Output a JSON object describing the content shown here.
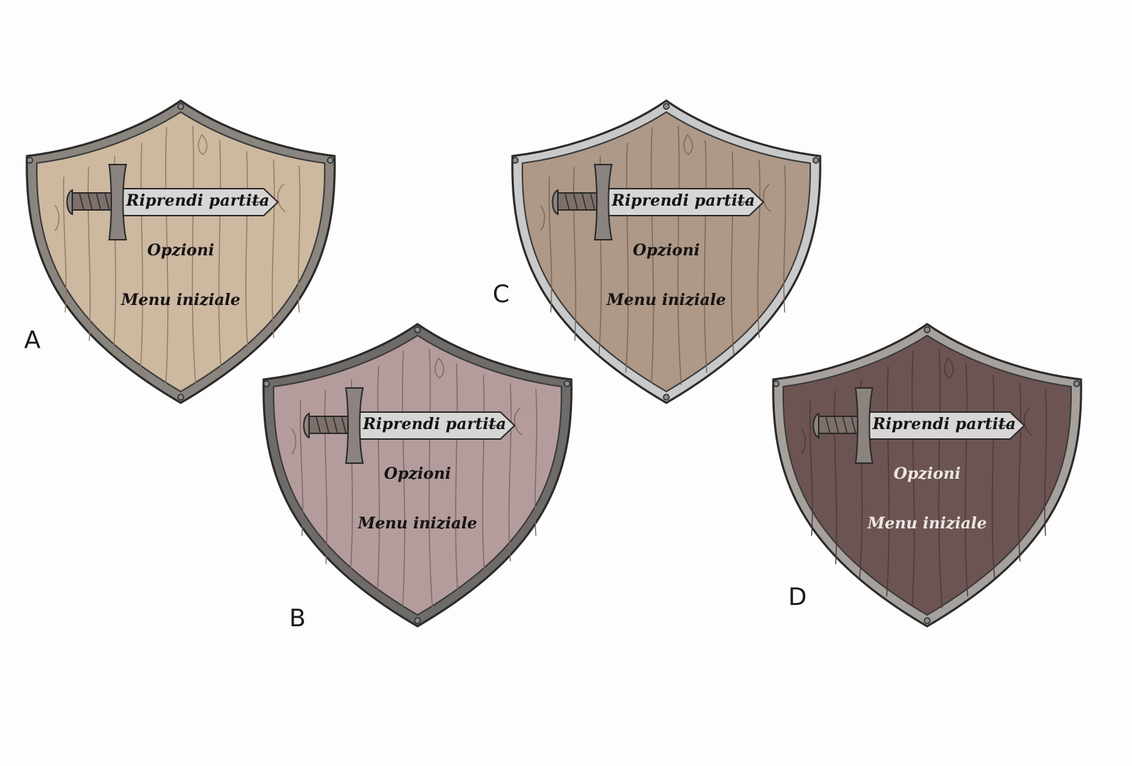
{
  "variants": [
    {
      "letter": "A",
      "resume_label": "Riprendi partita",
      "options_label": "Opzioni",
      "main_menu_label": "Menu iniziale",
      "wood_color": "#cdb8a0",
      "grain_color": "#8f7a66",
      "rim_color": "#8a857e",
      "text_color": "#141414"
    },
    {
      "letter": "B",
      "resume_label": "Riprendi partita",
      "options_label": "Opzioni",
      "main_menu_label": "Menu iniziale",
      "wood_color": "#b49c9c",
      "grain_color": "#7c6666",
      "rim_color": "#6e6b69",
      "text_color": "#141414"
    },
    {
      "letter": "C",
      "resume_label": "Riprendi partita",
      "options_label": "Opzioni",
      "main_menu_label": "Menu iniziale",
      "wood_color": "#ae9887",
      "grain_color": "#7a6656",
      "rim_color": "#c9c9c9",
      "text_color": "#141414"
    },
    {
      "letter": "D",
      "resume_label": "Riprendi partita",
      "options_label": "Opzioni",
      "main_menu_label": "Menu iniziale",
      "wood_color": "#6c5453",
      "grain_color": "#4a3837",
      "rim_color": "#a6a19d",
      "text_color": "#ece6e3"
    }
  ],
  "icons": {
    "sword": "sword-icon"
  }
}
